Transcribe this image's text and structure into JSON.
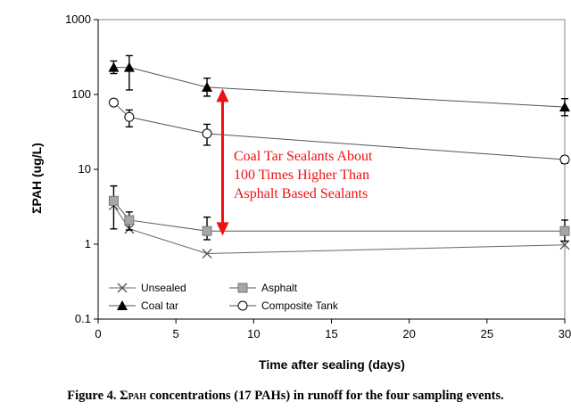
{
  "chart_data": {
    "type": "line",
    "xlabel": "Time after sealing (days)",
    "ylabel": "ΣPAH (ug/L)",
    "yscale": "log",
    "xlim": [
      0,
      30
    ],
    "ylim": [
      0.1,
      1000
    ],
    "xticks": [
      "0",
      "5",
      "10",
      "15",
      "20",
      "25",
      "30"
    ],
    "yticks": [
      "0.1",
      "1",
      "10",
      "100",
      "1000"
    ],
    "grid": false,
    "legend_position": "bottom-left",
    "series": [
      {
        "name": "Unsealed",
        "marker": "x",
        "x": [
          1,
          2,
          7,
          30
        ],
        "y": [
          3.3,
          1.6,
          0.75,
          0.98
        ]
      },
      {
        "name": "Asphalt",
        "marker": "square",
        "color": "#a6a6a6",
        "x": [
          1,
          2,
          7,
          30
        ],
        "y": [
          3.8,
          2.1,
          1.5,
          1.5
        ],
        "error_low": [
          1.6,
          1.55,
          1.15,
          1.1
        ],
        "error_high": [
          6.0,
          2.7,
          2.3,
          2.1
        ]
      },
      {
        "name": "Coal tar",
        "marker": "triangle",
        "x": [
          1,
          2,
          7,
          30
        ],
        "y": [
          230,
          230,
          125,
          68
        ],
        "error_low": [
          190,
          115,
          95,
          52
        ],
        "error_high": [
          280,
          330,
          165,
          88
        ]
      },
      {
        "name": "Composite Tank",
        "marker": "circle-open",
        "x": [
          1,
          2,
          7,
          30
        ],
        "y": [
          78,
          50,
          30,
          13.5
        ],
        "error_low": [
          72,
          37,
          21,
          12
        ],
        "error_high": [
          84,
          62,
          40,
          15
        ]
      }
    ],
    "annotation": {
      "lines": [
        "Coal Tar Sealants About",
        "100 Times Higher Than",
        "Asphalt Based Sealants"
      ],
      "color": "#ee1111",
      "arrow_x": 8,
      "arrow_y_range": [
        1.3,
        120
      ]
    }
  },
  "caption": {
    "prefix": "Figure 4. Σ",
    "sub": "PAH",
    "suffix": " concentrations (17 PAHs) in runoff for the four sampling events."
  }
}
